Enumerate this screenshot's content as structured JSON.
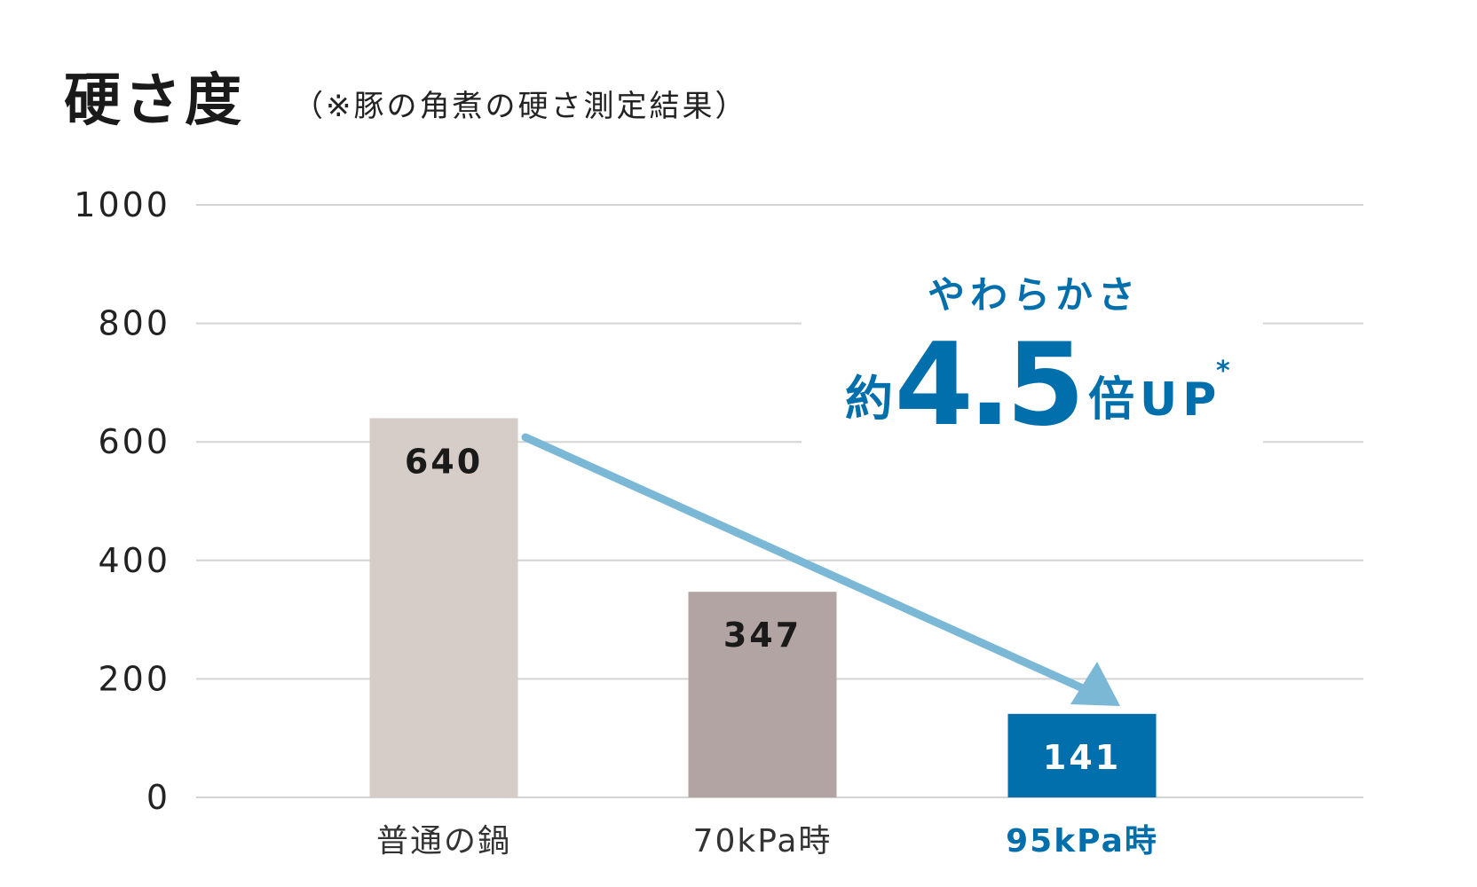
{
  "chart_data": {
    "type": "bar",
    "title": "硬さ度",
    "subtitle": "（※豚の角煮の硬さ測定結果）",
    "categories": [
      "普通の鍋",
      "70kPa時",
      "95kPa時"
    ],
    "values": [
      640,
      347,
      141
    ],
    "data_labels": [
      "640",
      "347",
      "141"
    ],
    "ylim": [
      0,
      1000
    ],
    "yticks": [
      0,
      200,
      400,
      600,
      800,
      1000
    ],
    "ytick_labels": [
      "0",
      "200",
      "400",
      "600",
      "800",
      "1000"
    ],
    "grid": true,
    "bar_colors": [
      "#d6ccc8",
      "#b1a4a2",
      "#006fab"
    ],
    "label_colors": [
      "#1a1a1a",
      "#1a1a1a",
      "#ffffff"
    ],
    "category_label_colors": [
      "#333333",
      "#333333",
      "#006fab"
    ],
    "annotation": {
      "line1": "やわらかさ",
      "prefix": "約",
      "number": "4.5",
      "suffix": "倍UP",
      "mark": "*",
      "color": "#006fab"
    },
    "arrow": {
      "from": "普通の鍋",
      "to": "95kPa時",
      "color": "#7ab8d6"
    }
  }
}
